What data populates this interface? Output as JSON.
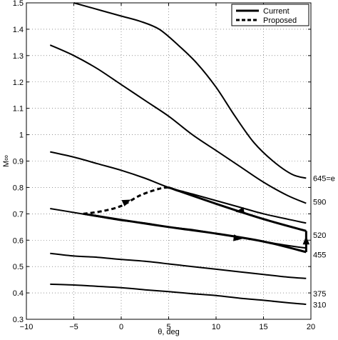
{
  "chart_data": {
    "type": "line",
    "xlabel": "θ, deg",
    "ylabel": "M∞",
    "xlim": [
      -10,
      20
    ],
    "ylim": [
      0.3,
      1.5
    ],
    "xticks": [
      -10,
      -5,
      0,
      5,
      10,
      15,
      20
    ],
    "yticks": [
      0.3,
      0.4,
      0.5,
      0.6,
      0.7,
      0.8,
      0.9,
      1.0,
      1.1,
      1.2,
      1.3,
      1.4,
      1.5
    ],
    "xtick_labels": [
      "−10",
      "−5",
      "0",
      "5",
      "10",
      "15",
      "20"
    ],
    "ytick_labels": [
      "0.3",
      "0.4",
      "0.5",
      "0.6",
      "0.7",
      "0.8",
      "0.9",
      "1",
      "1.1",
      "1.2",
      "1.3",
      "1.4",
      "1.5"
    ],
    "grid": true,
    "legend": {
      "placement": "top-right",
      "entries": [
        {
          "label": "Current",
          "style": "solid"
        },
        {
          "label": "Proposed",
          "style": "dashed"
        }
      ]
    },
    "contours": [
      {
        "label": "645=e",
        "x": [
          -5,
          -2,
          0,
          2,
          4,
          6,
          8,
          10,
          12,
          14,
          16,
          18,
          19.5
        ],
        "y": [
          1.5,
          1.47,
          1.45,
          1.43,
          1.4,
          1.34,
          1.27,
          1.18,
          1.07,
          0.97,
          0.9,
          0.85,
          0.835
        ]
      },
      {
        "label": "",
        "x": [
          -7.5,
          -5,
          -2.5,
          0,
          2.5,
          5,
          7.5,
          10,
          12.5,
          15,
          17.5,
          19.5
        ],
        "y": [
          1.34,
          1.3,
          1.25,
          1.19,
          1.13,
          1.07,
          1.0,
          0.94,
          0.88,
          0.82,
          0.77,
          0.74
        ]
      },
      {
        "label": "590",
        "x": [
          -7.5,
          -5,
          -2.5,
          0,
          2.5,
          5,
          7.5,
          10,
          12.5,
          15,
          17.5,
          19.5
        ],
        "y": [
          0.935,
          0.915,
          0.89,
          0.865,
          0.835,
          0.8,
          0.775,
          0.75,
          0.725,
          0.7,
          0.68,
          0.665
        ]
      },
      {
        "label": "520",
        "x": [
          -7.5,
          -5,
          -2.5,
          0,
          2.5,
          5,
          7.5,
          10,
          12.5,
          15,
          17.5,
          19.5
        ],
        "y": [
          0.72,
          0.705,
          0.69,
          0.675,
          0.665,
          0.65,
          0.64,
          0.625,
          0.61,
          0.595,
          0.58,
          0.57
        ]
      },
      {
        "label": "455",
        "x": [
          -7.5,
          -5,
          -2.5,
          0,
          2.5,
          5,
          7.5,
          10,
          12.5,
          15,
          17.5,
          19.5
        ],
        "y": [
          0.55,
          0.54,
          0.535,
          0.527,
          0.52,
          0.51,
          0.5,
          0.49,
          0.48,
          0.47,
          0.46,
          0.455
        ]
      },
      {
        "label": "375",
        "x": [
          -7.5,
          -5,
          -2.5,
          0,
          2.5,
          5,
          7.5,
          10,
          12.5,
          15,
          17.5,
          19.5
        ],
        "y": [
          0.433,
          0.43,
          0.425,
          0.42,
          0.412,
          0.405,
          0.397,
          0.39,
          0.38,
          0.372,
          0.363,
          0.357
        ]
      },
      {
        "label": "310",
        "x": [],
        "y": []
      }
    ],
    "series": [
      {
        "name": "Current",
        "style": "solid",
        "x": [
          -4,
          0,
          5,
          10,
          15,
          19.5,
          19.5,
          15,
          10,
          5
        ],
        "y": [
          0.7,
          0.677,
          0.65,
          0.625,
          0.595,
          0.555,
          0.635,
          0.68,
          0.738,
          0.8
        ]
      },
      {
        "name": "Proposed",
        "style": "dashed",
        "x": [
          -4,
          -2,
          0,
          2,
          4,
          5
        ],
        "y": [
          0.7,
          0.71,
          0.73,
          0.77,
          0.795,
          0.8
        ]
      }
    ]
  }
}
